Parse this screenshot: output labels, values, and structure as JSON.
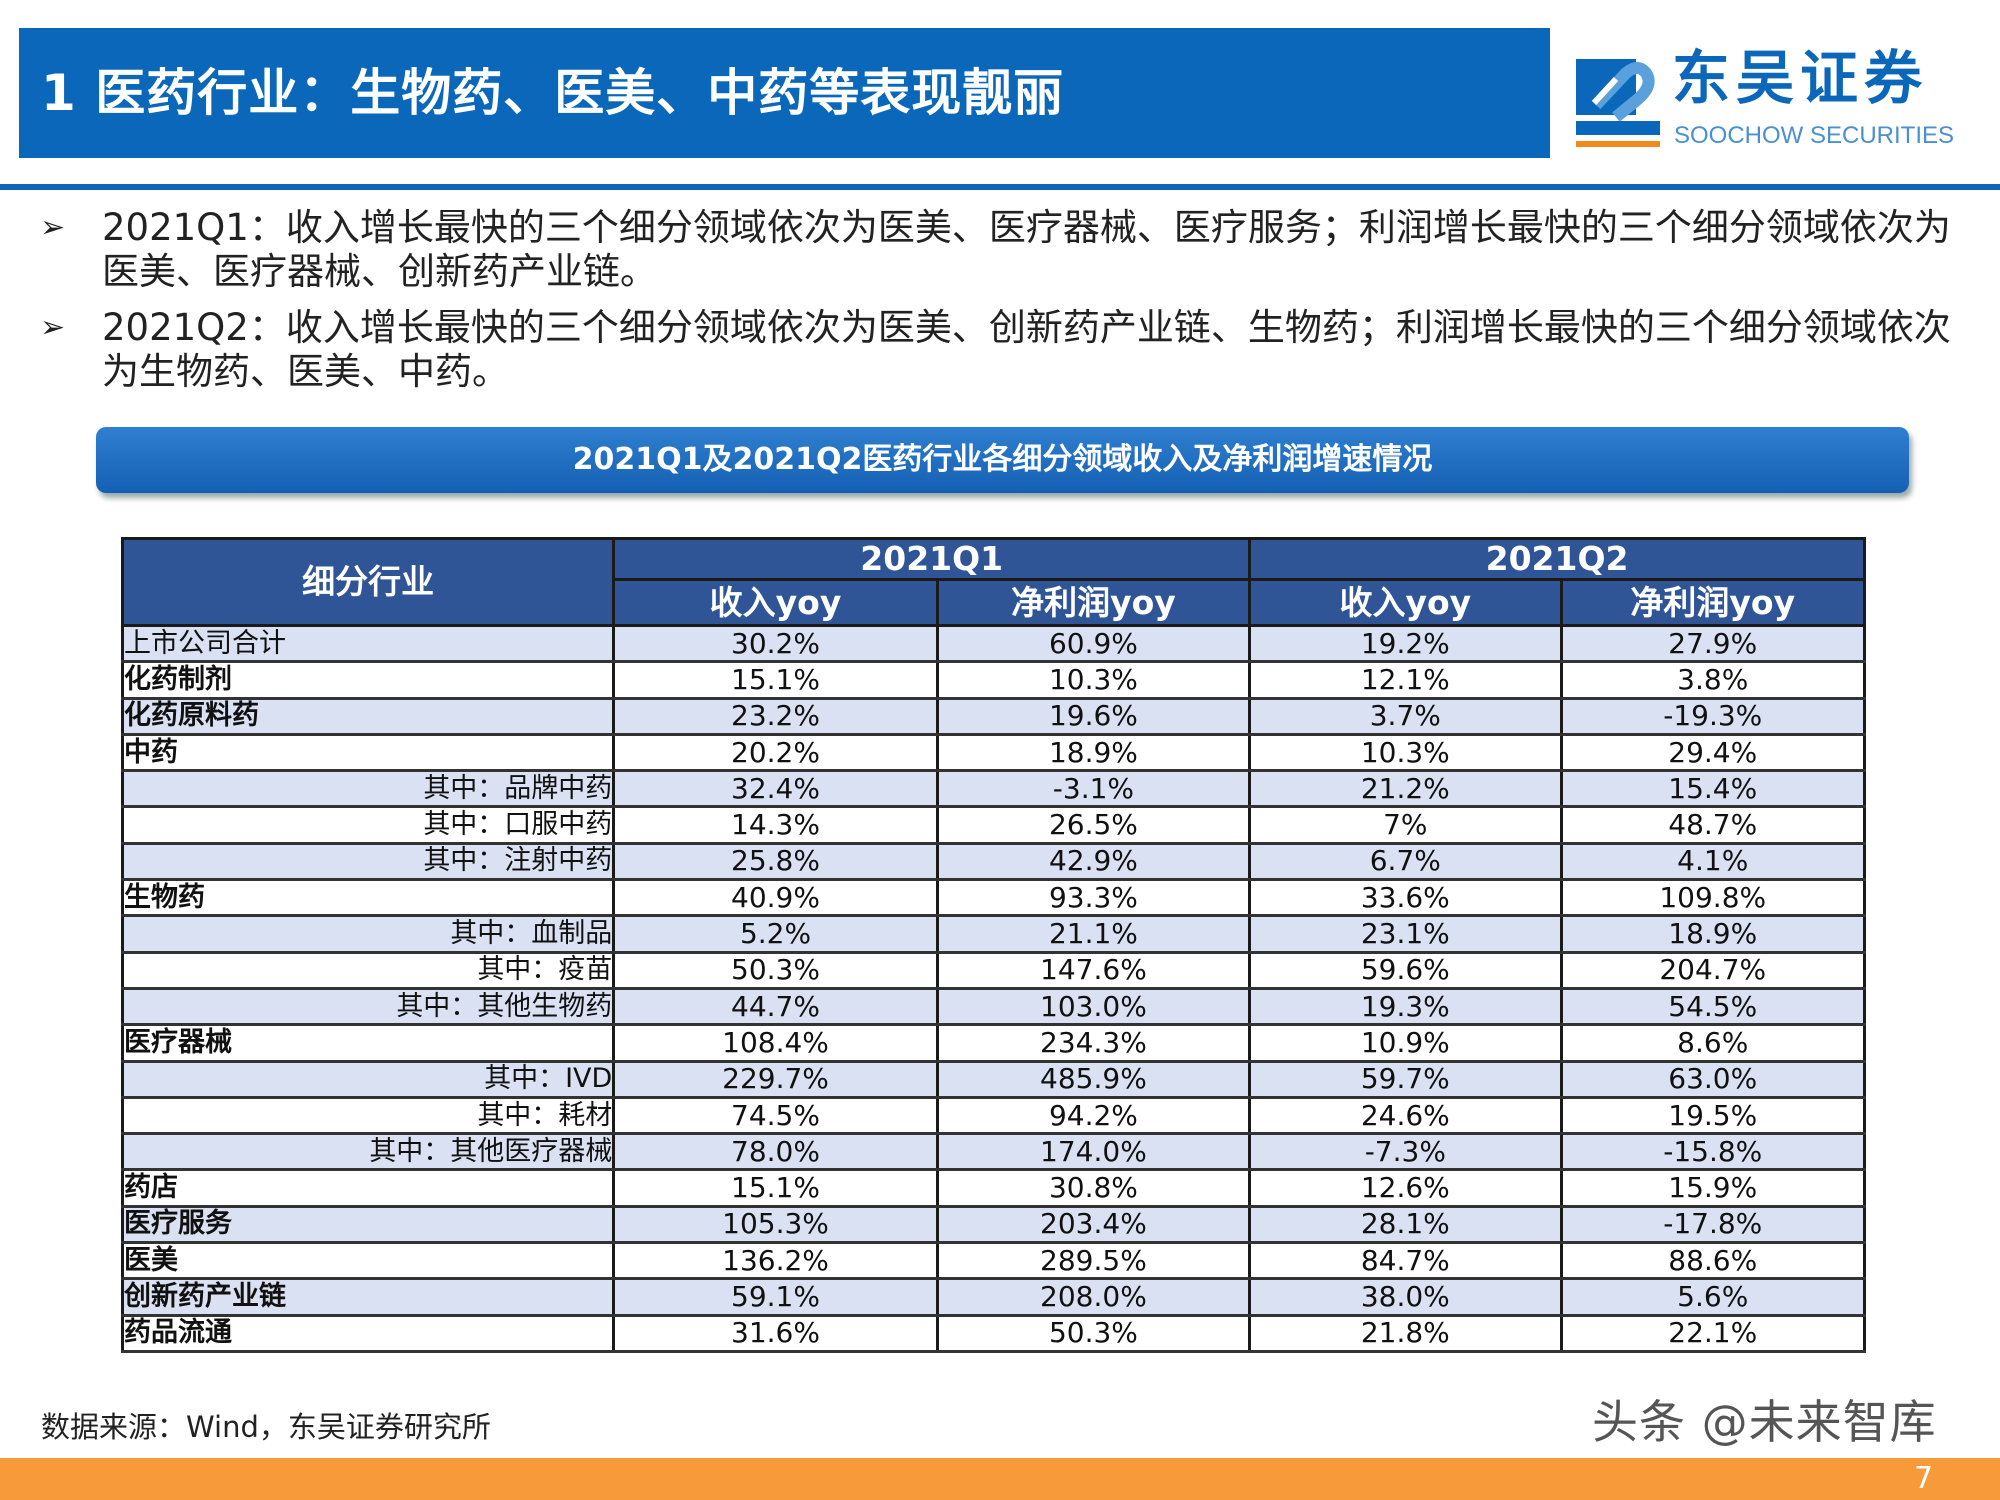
{
  "header": {
    "title": "1 医药行业：生物药、医美、中药等表现靓丽"
  },
  "logo": {
    "cn": "东吴证券",
    "en": "SOOCHOW SECURITIES",
    "mark": "SCS",
    "colors": {
      "primary": "#0a67b9",
      "accent": "#f08a1c"
    }
  },
  "bullets": [
    "2021Q1：收入增长最快的三个细分领域依次为医美、医疗器械、医疗服务；利润增长最快的三个细分领域依次为医美、医疗器械、创新药产业链。",
    "2021Q2：收入增长最快的三个细分领域依次为医美、创新药产业链、生物药；利润增长最快的三个细分领域依次为生物药、医美、中药。"
  ],
  "banner": "2021Q1及2021Q2医药行业各细分领域收入及净利润增速情况",
  "table": {
    "corner": "细分行业",
    "periods": [
      "2021Q1",
      "2021Q2"
    ],
    "metrics": [
      "收入yoy",
      "净利润yoy",
      "收入yoy",
      "净利润yoy"
    ],
    "rows": [
      {
        "label": "上市公司合计",
        "type": "total",
        "values": [
          "30.2%",
          "60.9%",
          "19.2%",
          "27.9%"
        ]
      },
      {
        "label": "化药制剂",
        "type": "main",
        "values": [
          "15.1%",
          "10.3%",
          "12.1%",
          "3.8%"
        ]
      },
      {
        "label": "化药原料药",
        "type": "main",
        "values": [
          "23.2%",
          "19.6%",
          "3.7%",
          "-19.3%"
        ]
      },
      {
        "label": "中药",
        "type": "main",
        "values": [
          "20.2%",
          "18.9%",
          "10.3%",
          "29.4%"
        ]
      },
      {
        "label": "其中：品牌中药",
        "type": "sub",
        "values": [
          "32.4%",
          "-3.1%",
          "21.2%",
          "15.4%"
        ]
      },
      {
        "label": "其中：口服中药",
        "type": "sub",
        "values": [
          "14.3%",
          "26.5%",
          "7%",
          "48.7%"
        ]
      },
      {
        "label": "其中：注射中药",
        "type": "sub",
        "values": [
          "25.8%",
          "42.9%",
          "6.7%",
          "4.1%"
        ]
      },
      {
        "label": "生物药",
        "type": "main",
        "values": [
          "40.9%",
          "93.3%",
          "33.6%",
          "109.8%"
        ]
      },
      {
        "label": "其中：血制品",
        "type": "sub",
        "values": [
          "5.2%",
          "21.1%",
          "23.1%",
          "18.9%"
        ]
      },
      {
        "label": "其中：疫苗",
        "type": "sub",
        "values": [
          "50.3%",
          "147.6%",
          "59.6%",
          "204.7%"
        ]
      },
      {
        "label": "其中：其他生物药",
        "type": "sub",
        "values": [
          "44.7%",
          "103.0%",
          "19.3%",
          "54.5%"
        ]
      },
      {
        "label": "医疗器械",
        "type": "main",
        "values": [
          "108.4%",
          "234.3%",
          "10.9%",
          "8.6%"
        ]
      },
      {
        "label": "其中：IVD",
        "type": "sub",
        "values": [
          "229.7%",
          "485.9%",
          "59.7%",
          "63.0%"
        ]
      },
      {
        "label": "其中：耗材",
        "type": "sub",
        "values": [
          "74.5%",
          "94.2%",
          "24.6%",
          "19.5%"
        ]
      },
      {
        "label": "其中：其他医疗器械",
        "type": "sub",
        "values": [
          "78.0%",
          "174.0%",
          "-7.3%",
          "-15.8%"
        ]
      },
      {
        "label": "药店",
        "type": "main",
        "values": [
          "15.1%",
          "30.8%",
          "12.6%",
          "15.9%"
        ]
      },
      {
        "label": "医疗服务",
        "type": "main",
        "values": [
          "105.3%",
          "203.4%",
          "28.1%",
          "-17.8%"
        ]
      },
      {
        "label": "医美",
        "type": "main",
        "values": [
          "136.2%",
          "289.5%",
          "84.7%",
          "88.6%"
        ]
      },
      {
        "label": "创新药产业链",
        "type": "main",
        "values": [
          "59.1%",
          "208.0%",
          "38.0%",
          "5.6%"
        ]
      },
      {
        "label": "药品流通",
        "type": "main",
        "values": [
          "31.6%",
          "50.3%",
          "21.8%",
          "22.1%"
        ]
      }
    ]
  },
  "footer": {
    "source": "数据来源：Wind，东吴证券研究所",
    "watermark": "头条 @未来智库",
    "page": "7"
  }
}
